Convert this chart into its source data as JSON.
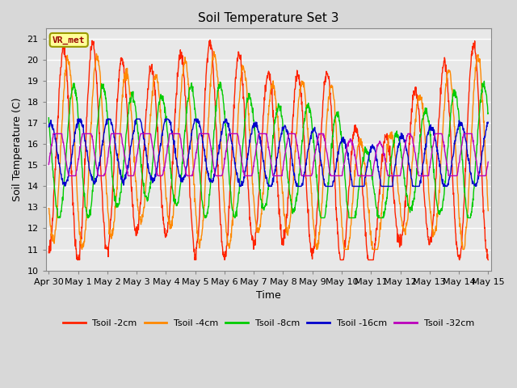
{
  "title": "Soil Temperature Set 3",
  "xlabel": "Time",
  "ylabel": "Soil Temperature (C)",
  "ylim": [
    10.0,
    21.5
  ],
  "yticks": [
    10.0,
    11.0,
    12.0,
    13.0,
    14.0,
    15.0,
    16.0,
    17.0,
    18.0,
    19.0,
    20.0,
    21.0
  ],
  "series_colors": [
    "#ff2200",
    "#ff8800",
    "#00cc00",
    "#0000cc",
    "#bb00bb"
  ],
  "series_labels": [
    "Tsoil -2cm",
    "Tsoil -4cm",
    "Tsoil -8cm",
    "Tsoil -16cm",
    "Tsoil -32cm"
  ],
  "label_text": "VR_met",
  "background_color": "#d8d8d8",
  "plot_background": "#e8e8e8",
  "grid_color": "#ffffff",
  "x_tick_labels": [
    "Apr 30",
    "May 1",
    "May 2",
    "May 3",
    "May 4",
    "May 5",
    "May 6",
    "May 7",
    "May 8",
    "May 9",
    "May 10",
    "May 11",
    "May 12",
    "May 13",
    "May 14",
    "May 15"
  ]
}
